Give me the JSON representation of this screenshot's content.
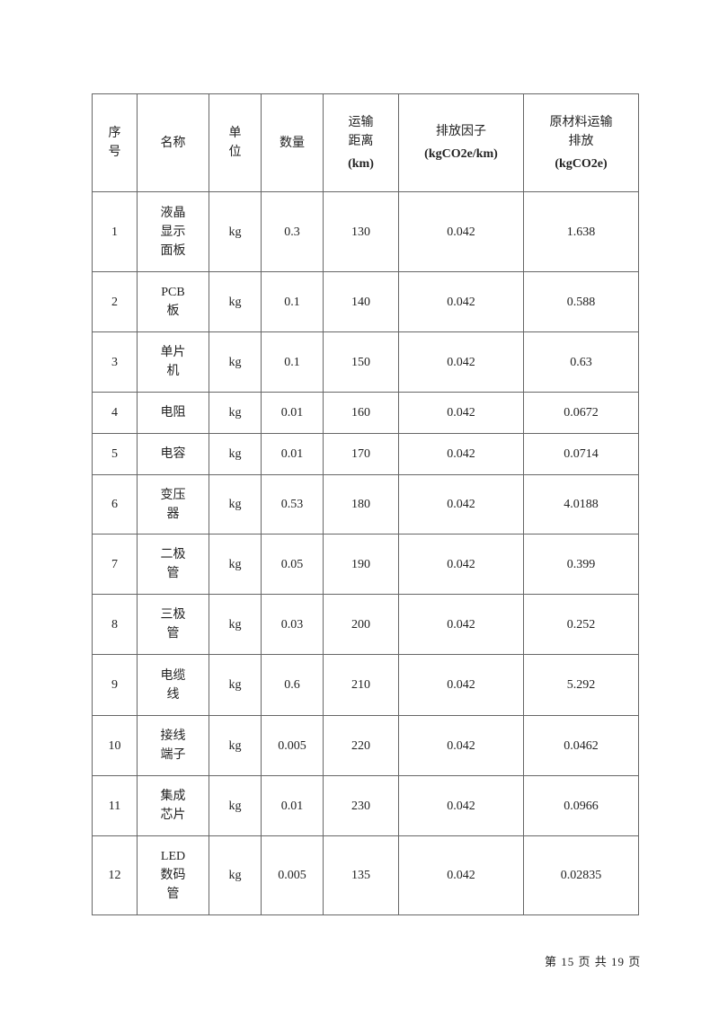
{
  "table": {
    "headers": [
      {
        "lines": [
          "序",
          "号"
        ],
        "unit": ""
      },
      {
        "lines": [
          "名称"
        ],
        "unit": ""
      },
      {
        "lines": [
          "单",
          "位"
        ],
        "unit": ""
      },
      {
        "lines": [
          "数量"
        ],
        "unit": ""
      },
      {
        "lines": [
          "运输",
          "距离"
        ],
        "unit": "(km)"
      },
      {
        "lines": [
          "排放因子"
        ],
        "unit": "(kgCO2e/km)"
      },
      {
        "lines": [
          "原材料运输",
          "排放"
        ],
        "unit": "(kgCO2e)"
      }
    ],
    "rows": [
      {
        "no": "1",
        "name": [
          "液晶",
          "显示",
          "面板"
        ],
        "unit": "kg",
        "qty": "0.3",
        "distance": "130",
        "factor": "0.042",
        "emission": "1.638"
      },
      {
        "no": "2",
        "name": [
          "PCB",
          "板"
        ],
        "unit": "kg",
        "qty": "0.1",
        "distance": "140",
        "factor": "0.042",
        "emission": "0.588"
      },
      {
        "no": "3",
        "name": [
          "单片",
          "机"
        ],
        "unit": "kg",
        "qty": "0.1",
        "distance": "150",
        "factor": "0.042",
        "emission": "0.63"
      },
      {
        "no": "4",
        "name": [
          "电阻"
        ],
        "unit": "kg",
        "qty": "0.01",
        "distance": "160",
        "factor": "0.042",
        "emission": "0.0672"
      },
      {
        "no": "5",
        "name": [
          "电容"
        ],
        "unit": "kg",
        "qty": "0.01",
        "distance": "170",
        "factor": "0.042",
        "emission": "0.0714"
      },
      {
        "no": "6",
        "name": [
          "变压",
          "器"
        ],
        "unit": "kg",
        "qty": "0.53",
        "distance": "180",
        "factor": "0.042",
        "emission": "4.0188"
      },
      {
        "no": "7",
        "name": [
          "二极",
          "管"
        ],
        "unit": "kg",
        "qty": "0.05",
        "distance": "190",
        "factor": "0.042",
        "emission": "0.399"
      },
      {
        "no": "8",
        "name": [
          "三极",
          "管"
        ],
        "unit": "kg",
        "qty": "0.03",
        "distance": "200",
        "factor": "0.042",
        "emission": "0.252"
      },
      {
        "no": "9",
        "name": [
          "电缆",
          "线"
        ],
        "unit": "kg",
        "qty": "0.6",
        "distance": "210",
        "factor": "0.042",
        "emission": "5.292"
      },
      {
        "no": "10",
        "name": [
          "接线",
          "端子"
        ],
        "unit": "kg",
        "qty": "0.005",
        "distance": "220",
        "factor": "0.042",
        "emission": "0.0462"
      },
      {
        "no": "11",
        "name": [
          "集成",
          "芯片"
        ],
        "unit": "kg",
        "qty": "0.01",
        "distance": "230",
        "factor": "0.042",
        "emission": "0.0966"
      },
      {
        "no": "12",
        "name": [
          "LED",
          "数码",
          "管"
        ],
        "unit": "kg",
        "qty": "0.005",
        "distance": "135",
        "factor": "0.042",
        "emission": "0.02835"
      }
    ]
  },
  "footer": {
    "page_text": "第 15 页 共 19 页"
  }
}
